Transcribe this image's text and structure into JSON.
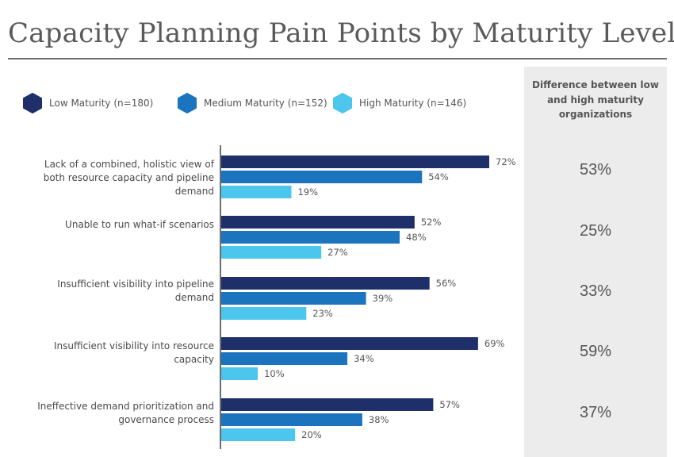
{
  "title": "Capacity Planning Pain Points by Maturity Level",
  "diff_header": "Difference between low and high maturity organizations",
  "colors": {
    "low": "#1f2f6a",
    "medium": "#1c74bf",
    "high": "#4cc6ec",
    "panel": "#ececec"
  },
  "chart_data": {
    "type": "bar",
    "orientation": "horizontal",
    "title": "Capacity Planning Pain Points by Maturity Level",
    "categories": [
      "Lack of a combined, holistic view of both resource capacity and pipeline demand",
      "Unable to run what-if scenarios",
      "Insufficient visibility into pipeline demand",
      "Insufficient visibility into resource capacity",
      "Ineffective demand prioritization and governance process"
    ],
    "series": [
      {
        "name": "Low Maturity (n=180)",
        "values": [
          72,
          52,
          56,
          69,
          57
        ],
        "labels": [
          "72%",
          "52%",
          "56%",
          "69%",
          "57%"
        ]
      },
      {
        "name": "Medium Maturity (n=152)",
        "values": [
          54,
          48,
          39,
          34,
          38
        ],
        "labels": [
          "54%",
          "48%",
          "39%",
          "34%",
          "38%"
        ]
      },
      {
        "name": "High Maturity (n=146)",
        "values": [
          19,
          27,
          23,
          10,
          20
        ],
        "labels": [
          "19%",
          "27%",
          "23%",
          "10%",
          "20%"
        ]
      }
    ],
    "differences": [
      "53%",
      "25%",
      "33%",
      "59%",
      "37%"
    ],
    "xlim": [
      0,
      100
    ],
    "grid": false,
    "legend": "top-left"
  }
}
